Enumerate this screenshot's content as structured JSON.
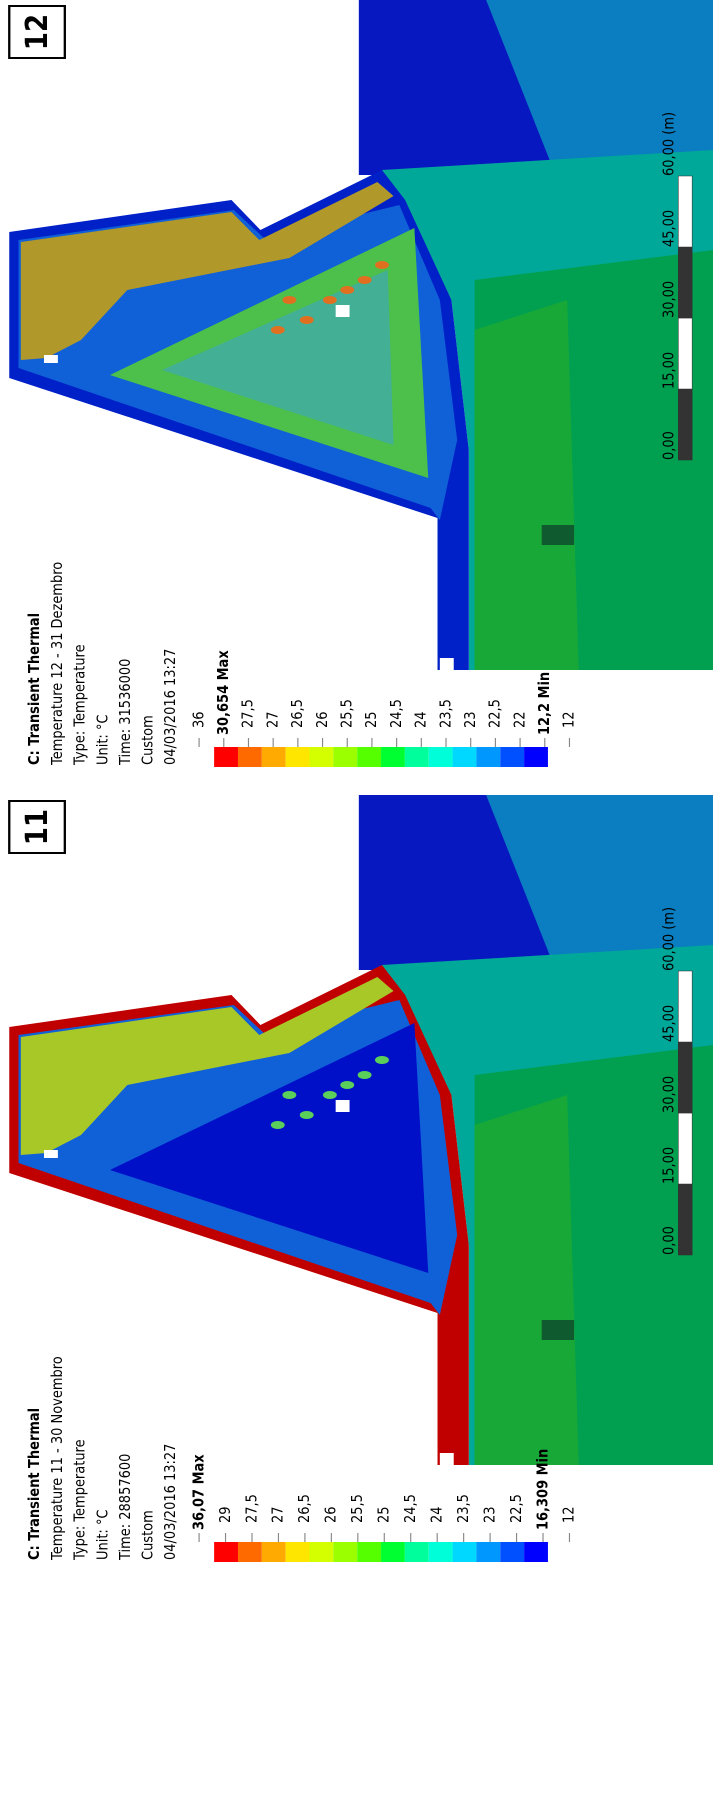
{
  "panels": [
    {
      "number": "12",
      "title": "C: Transient Thermal",
      "lines": [
        "Temperature 12 - 31 Dezembro",
        "Type: Temperature",
        "Unit: °C",
        "Time: 31536000",
        "Custom",
        "04/03/2016 13:27"
      ],
      "legend": [
        {
          "text": "36",
          "bold": false
        },
        {
          "text": "30,654 Max",
          "bold": true
        },
        {
          "text": "27,5",
          "bold": false
        },
        {
          "text": "27",
          "bold": false
        },
        {
          "text": "26,5",
          "bold": false
        },
        {
          "text": "26",
          "bold": false
        },
        {
          "text": "25,5",
          "bold": false
        },
        {
          "text": "25",
          "bold": false
        },
        {
          "text": "24,5",
          "bold": false
        },
        {
          "text": "24",
          "bold": false
        },
        {
          "text": "23,5",
          "bold": false
        },
        {
          "text": "23",
          "bold": false
        },
        {
          "text": "22,5",
          "bold": false
        },
        {
          "text": "22",
          "bold": false
        },
        {
          "text": "12,2 Min",
          "bold": true
        },
        {
          "text": "12",
          "bold": false
        }
      ],
      "scale": [
        "0,00",
        "15,00",
        "30,00",
        "45,00",
        "60,00 (m)"
      ]
    },
    {
      "number": "11",
      "title": "C: Transient Thermal",
      "lines": [
        "Temperature 11 - 30 Novembro",
        "Type: Temperature",
        "Unit: °C",
        "Time: 28857600",
        "Custom",
        "04/03/2016 13:27"
      ],
      "legend": [
        {
          "text": "36,07 Max",
          "bold": true
        },
        {
          "text": "29",
          "bold": false
        },
        {
          "text": "27,5",
          "bold": false
        },
        {
          "text": "27",
          "bold": false
        },
        {
          "text": "26,5",
          "bold": false
        },
        {
          "text": "26",
          "bold": false
        },
        {
          "text": "25,5",
          "bold": false
        },
        {
          "text": "25",
          "bold": false
        },
        {
          "text": "24,5",
          "bold": false
        },
        {
          "text": "24",
          "bold": false
        },
        {
          "text": "23,5",
          "bold": false
        },
        {
          "text": "23",
          "bold": false
        },
        {
          "text": "22,5",
          "bold": false
        },
        {
          "text": "16,309 Min",
          "bold": true
        },
        {
          "text": "12",
          "bold": false
        }
      ],
      "scale": [
        "0,00",
        "15,00",
        "30,00",
        "45,00",
        "60,00 (m)"
      ]
    }
  ]
}
